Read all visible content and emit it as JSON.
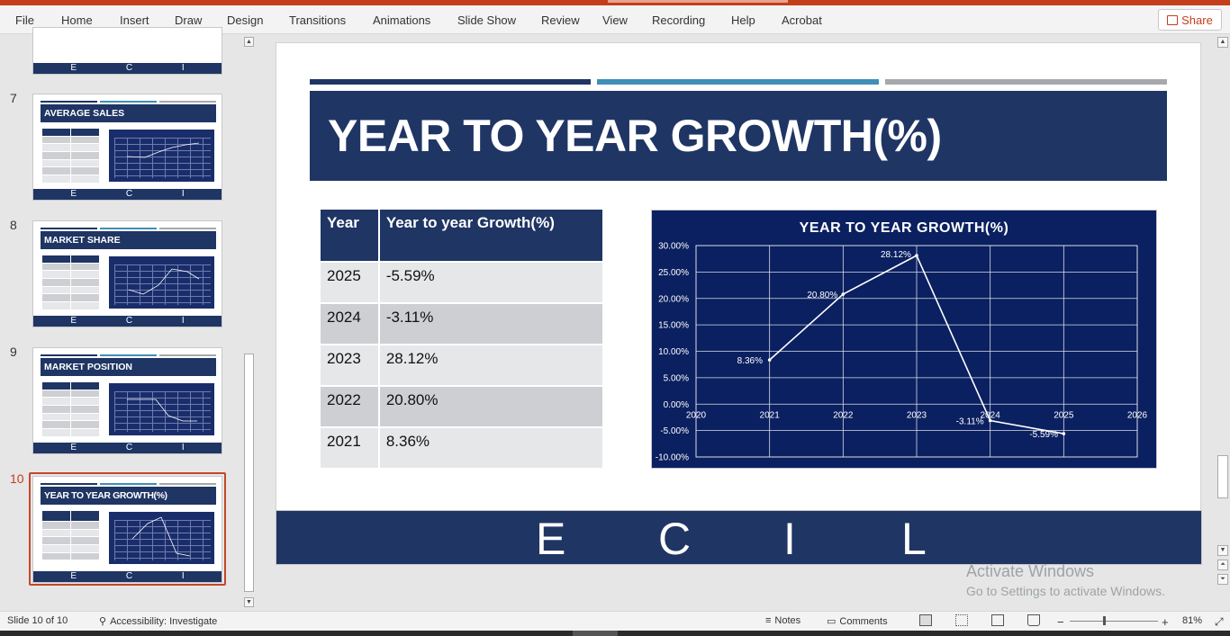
{
  "ribbon": {
    "tabs": [
      "File",
      "Home",
      "Insert",
      "Draw",
      "Design",
      "Transitions",
      "Animations",
      "Slide Show",
      "Review",
      "View",
      "Recording",
      "Help",
      "Acrobat"
    ],
    "share_label": "Share"
  },
  "thumbnails": {
    "numbers": [
      "7",
      "8",
      "9",
      "10"
    ],
    "titles": [
      "AVERAGE SALES",
      "MARKET SHARE",
      "MARKET POSITION",
      "YEAR TO YEAR GROWTH(%)"
    ],
    "footer_text": "E C I L"
  },
  "slide": {
    "title": "YEAR TO YEAR GROWTH(%)",
    "table": {
      "headers": [
        "Year",
        "Year to year Growth(%)"
      ],
      "rows": [
        [
          "2025",
          "-5.59%"
        ],
        [
          "2024",
          "-3.11%"
        ],
        [
          "2023",
          "28.12%"
        ],
        [
          "2022",
          "20.80%"
        ],
        [
          "2021",
          "8.36%"
        ]
      ]
    },
    "footer_letters": [
      "E",
      "C",
      "I",
      "L"
    ],
    "accent_colors": {
      "navy": "#1f3564",
      "teal": "#3f8fb7",
      "gray": "#a6a8ab"
    }
  },
  "chart_data": {
    "type": "line",
    "title": "YEAR TO YEAR GROWTH(%)",
    "x": [
      2021,
      2022,
      2023,
      2024,
      2025
    ],
    "series": [
      {
        "values": [
          8.36,
          20.8,
          28.12,
          -3.11,
          -5.59
        ]
      }
    ],
    "data_labels": [
      "8.36%",
      "20.80%",
      "28.12%",
      "-3.11%",
      "-5.59%"
    ],
    "xlim": [
      2020,
      2026
    ],
    "x_ticks": [
      "2020",
      "2021",
      "2022",
      "2023",
      "2024",
      "2025",
      "2026"
    ],
    "ylim": [
      -10,
      30
    ],
    "y_ticks": [
      "30.00%",
      "25.00%",
      "20.00%",
      "15.00%",
      "10.00%",
      "5.00%",
      "0.00%",
      "-5.00%",
      "-10.00%"
    ],
    "grid": true,
    "background": "#0b2060",
    "line_color": "#ffffff"
  },
  "watermark": {
    "line1": "Activate Windows",
    "line2": "Go to Settings to activate Windows."
  },
  "status": {
    "slide_info": "Slide 10 of 10",
    "accessibility": "Accessibility: Investigate",
    "notes": "Notes",
    "comments": "Comments",
    "zoom": "81%"
  }
}
